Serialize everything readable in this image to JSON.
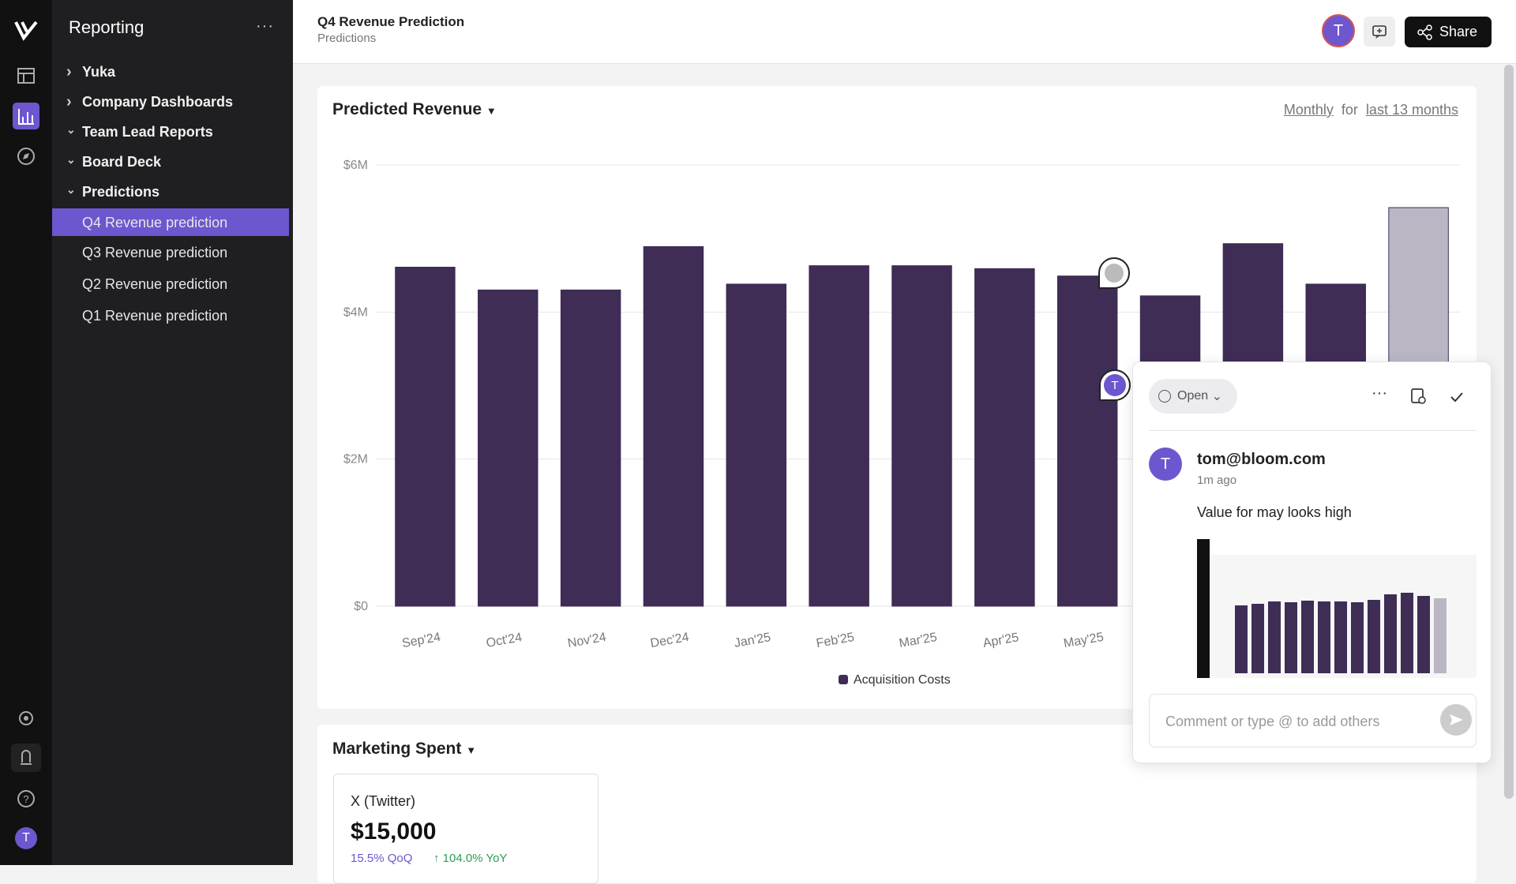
{
  "sidebar": {
    "title": "Reporting",
    "items": [
      {
        "label": "Yuka",
        "expanded": false
      },
      {
        "label": "Company Dashboards",
        "expanded": false
      },
      {
        "label": "Team Lead Reports",
        "expanded": true
      },
      {
        "label": "Board Deck",
        "expanded": true
      },
      {
        "label": "Predictions",
        "expanded": true
      }
    ],
    "children": [
      "Q4 Revenue prediction",
      "Q3 Revenue prediction",
      "Q2 Revenue prediction",
      "Q1 Revenue prediction"
    ],
    "rail_avatar": "T"
  },
  "header": {
    "title": "Q4 Revenue Prediction",
    "subtitle": "Predictions",
    "avatar": "T",
    "share": "Share"
  },
  "chart_data": {
    "type": "bar",
    "title": "Predicted Revenue",
    "period": "Monthly",
    "period_joiner": "for",
    "range": "last 13 months",
    "categories": [
      "Sep'24",
      "Oct'24",
      "Nov'24",
      "Dec'24",
      "Jan'25",
      "Feb'25",
      "Mar'25",
      "Apr'25",
      "May'25",
      null,
      null,
      null,
      null
    ],
    "series": [
      {
        "name": "Acquisition Costs",
        "color": "#3f2d56",
        "values": [
          4610000,
          4300000,
          4300000,
          4890000,
          4380000,
          4630000,
          4630000,
          4590000,
          4490000,
          4220000,
          4930000,
          4380000,
          5420000
        ]
      }
    ],
    "colors": [
      "#3f2d56",
      "#3f2d56",
      "#3f2d56",
      "#3f2d56",
      "#3f2d56",
      "#3f2d56",
      "#3f2d56",
      "#3f2d56",
      "#3f2d56",
      "#3f2d56",
      "#3f2d56",
      "#3f2d56",
      "#bbb6c4"
    ],
    "ylim": [
      0,
      6000000
    ],
    "yticks": [
      {
        "value": 0,
        "label": "$0"
      },
      {
        "value": 2000000,
        "label": "$2M"
      },
      {
        "value": 4000000,
        "label": "$4M"
      },
      {
        "value": 6000000,
        "label": "$6M"
      }
    ],
    "grid": true,
    "marker": "T"
  },
  "marketing": {
    "title": "Marketing Spent",
    "card": {
      "name": "X (Twitter)",
      "amount": "$15,000",
      "qoq": "15.5% QoQ",
      "yoy": "104.0% YoY"
    }
  },
  "comment": {
    "status": "Open",
    "avatar": "T",
    "author": "tom@bloom.com",
    "time": "1m ago",
    "text": "Value for may looks high",
    "placeholder": "Comment or type @ to add others"
  }
}
